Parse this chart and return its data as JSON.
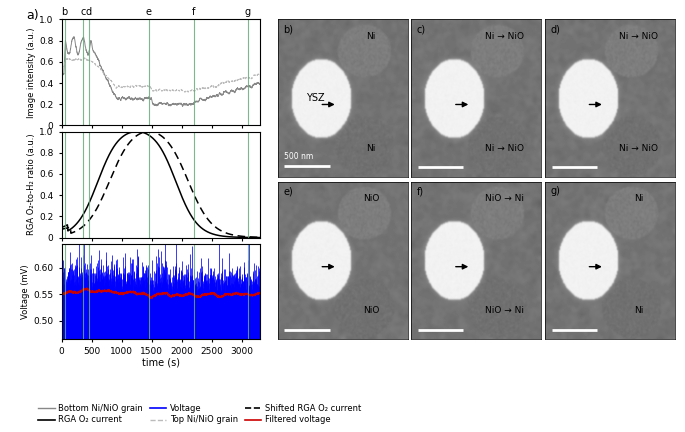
{
  "x_max": 3300,
  "x_ticks": [
    0,
    500,
    1000,
    1500,
    2000,
    2500,
    3000
  ],
  "vlines": {
    "b": 50,
    "c": 350,
    "d": 450,
    "e": 1450,
    "f": 2200,
    "g": 3100
  },
  "vline_color": "#6aaa7a",
  "top_panel": {
    "ylim": [
      0.0,
      1.0
    ],
    "yticks": [
      0.0,
      0.2,
      0.4,
      0.6,
      0.8,
      1.0
    ],
    "ylabel": "Image intensity (a.u.)",
    "bottom_line_color": "#888888",
    "top_line_color": "#bbbbbb"
  },
  "mid_panel": {
    "ylim": [
      0.0,
      1.0
    ],
    "yticks": [
      0.0,
      0.2,
      0.4,
      0.6,
      0.8,
      1.0
    ],
    "ylabel": "RGA O₂-to-H₂ ratio (a.u.)",
    "rga_color": "#000000",
    "shifted_rga_color": "#000000"
  },
  "bot_panel": {
    "ylim": [
      0.465,
      0.645
    ],
    "yticks": [
      0.5,
      0.55,
      0.6
    ],
    "ylabel": "Voltage (mV)",
    "voltage_color": "#0000ff",
    "filtered_color": "#cc0000"
  },
  "legend_items": [
    {
      "label": "Bottom Ni/NiO grain",
      "color": "#888888",
      "style": "solid",
      "lw": 1.0
    },
    {
      "label": "RGA O₂ current",
      "color": "#000000",
      "style": "solid",
      "lw": 1.2
    },
    {
      "label": "Voltage",
      "color": "#0000ff",
      "style": "solid",
      "lw": 1.2
    },
    {
      "label": "Top Ni/NiO grain",
      "color": "#bbbbbb",
      "style": "dashed",
      "lw": 1.0
    },
    {
      "label": "Shifted RGA O₂ current",
      "color": "#000000",
      "style": "dashed",
      "lw": 1.2
    },
    {
      "label": "Filtered voltage",
      "color": "#cc0000",
      "style": "solid",
      "lw": 1.2
    }
  ],
  "panel_label_a": "a)",
  "xlabel": "time (s)",
  "img_panel_labels": [
    "b)",
    "c)",
    "d)",
    "e)",
    "f)",
    "g)"
  ],
  "img_top_texts": [
    "Ni",
    "Ni → NiO",
    "Ni → NiO",
    "NiO",
    "NiO → Ni",
    "Ni"
  ],
  "img_bot_texts": [
    "Ni",
    "Ni → NiO",
    "Ni → NiO",
    "NiO",
    "NiO → Ni",
    "Ni"
  ],
  "img_ysz": [
    true,
    false,
    false,
    false,
    false,
    false
  ]
}
